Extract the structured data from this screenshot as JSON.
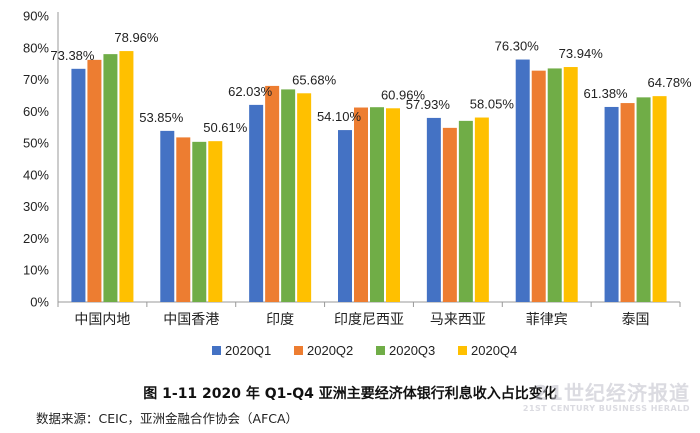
{
  "chart_data": {
    "type": "bar",
    "title": "图 1-11 2020 年 Q1-Q4 亚洲主要经济体银行利息收入占比变化",
    "source": "数据来源：CEIC，亚洲金融合作协会（AFCA）",
    "categories": [
      "中国内地",
      "中国香港",
      "印度",
      "印度尼西亚",
      "马来西亚",
      "菲律宾",
      "泰国"
    ],
    "series": [
      {
        "name": "2020Q1",
        "color": "#4472C4",
        "values": [
          73.38,
          53.85,
          62.03,
          54.1,
          57.93,
          76.3,
          61.38
        ]
      },
      {
        "name": "2020Q2",
        "color": "#ED7D31",
        "values": [
          76.2,
          51.8,
          68.0,
          61.2,
          54.8,
          72.8,
          62.6
        ]
      },
      {
        "name": "2020Q3",
        "color": "#70AD47",
        "values": [
          78.0,
          50.4,
          66.9,
          61.3,
          57.0,
          73.5,
          64.4
        ]
      },
      {
        "name": "2020Q4",
        "color": "#FFC000",
        "values": [
          78.96,
          50.61,
          65.68,
          60.96,
          58.05,
          73.94,
          64.78
        ]
      }
    ],
    "data_labels": [
      {
        "text": "73.38%",
        "category": 0,
        "series": 0
      },
      {
        "text": "78.96%",
        "category": 0,
        "series": 3
      },
      {
        "text": "53.85%",
        "category": 1,
        "series": 0
      },
      {
        "text": "50.61%",
        "category": 1,
        "series": 3
      },
      {
        "text": "62.03%",
        "category": 2,
        "series": 0
      },
      {
        "text": "65.68%",
        "category": 2,
        "series": 3
      },
      {
        "text": "54.10%",
        "category": 3,
        "series": 0
      },
      {
        "text": "60.96%",
        "category": 3,
        "series": 3
      },
      {
        "text": "57.93%",
        "category": 4,
        "series": 0
      },
      {
        "text": "58.05%",
        "category": 4,
        "series": 3
      },
      {
        "text": "76.30%",
        "category": 5,
        "series": 0
      },
      {
        "text": "73.94%",
        "category": 5,
        "series": 3
      },
      {
        "text": "61.38%",
        "category": 6,
        "series": 0
      },
      {
        "text": "64.78%",
        "category": 6,
        "series": 3
      }
    ],
    "y_ticks": [
      "0%",
      "10%",
      "20%",
      "30%",
      "40%",
      "50%",
      "60%",
      "70%",
      "80%",
      "90%"
    ],
    "ylim": [
      0,
      90
    ],
    "xlabel": "",
    "ylabel": "",
    "grid": false,
    "legend_position": "bottom"
  },
  "watermark": {
    "cn": "21世纪经济报道",
    "en": "21ST CENTURY BUSINESS HERALD"
  }
}
